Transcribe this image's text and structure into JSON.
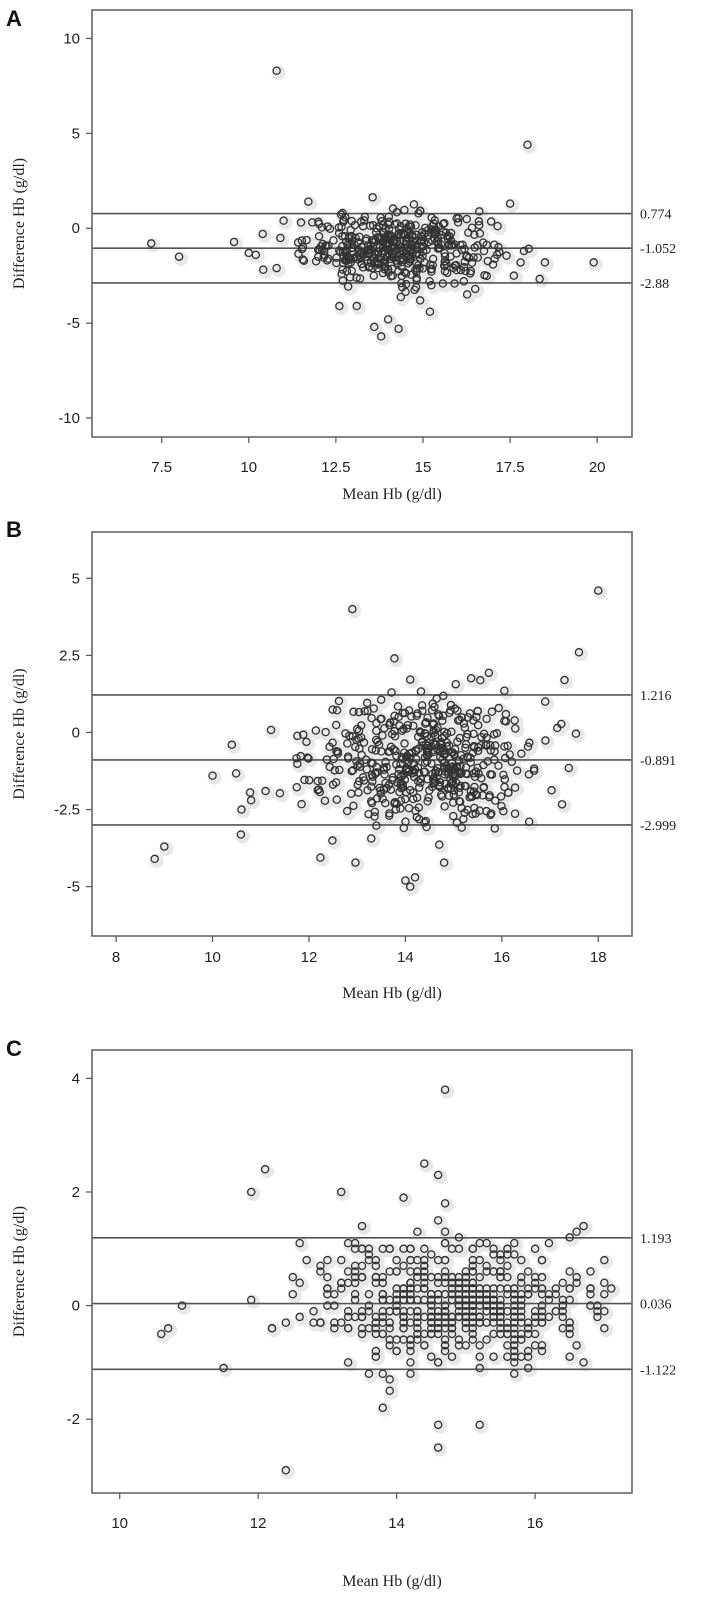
{
  "chart_data": [
    {
      "panel": "A",
      "type": "scatter",
      "title": "",
      "xlabel": "Mean Hb (g/dl)",
      "ylabel": "Difference Hb (g/dl)",
      "xlim": [
        5.5,
        21
      ],
      "ylim": [
        -11,
        11.5
      ],
      "xticks": [
        7.5,
        10,
        12.5,
        15,
        17.5,
        20
      ],
      "xtick_labels": [
        "7.5",
        "10",
        "12.5",
        "15",
        "17.5",
        "20"
      ],
      "yticks": [
        10,
        5,
        0,
        -5,
        -10
      ],
      "ytick_labels": [
        "10",
        "5",
        "0",
        "-5",
        "-10"
      ],
      "reference_lines": [
        {
          "value": 0.774,
          "label": "0.774"
        },
        {
          "value": -1.052,
          "label": "-1.052"
        },
        {
          "value": -2.88,
          "label": "-2.88"
        }
      ],
      "cloud": {
        "cx": 14.3,
        "cy": -1.05,
        "sx": 1.35,
        "sy": 0.9,
        "n": 430
      },
      "outliers": [
        [
          7.2,
          -0.8
        ],
        [
          8.0,
          -1.5
        ],
        [
          10.0,
          -1.3
        ],
        [
          10.2,
          -1.4
        ],
        [
          10.4,
          -0.3
        ],
        [
          10.8,
          8.3
        ],
        [
          10.8,
          -2.1
        ],
        [
          11.0,
          0.4
        ],
        [
          11.5,
          0.3
        ],
        [
          12.6,
          -4.1
        ],
        [
          13.1,
          -4.1
        ],
        [
          13.6,
          -5.2
        ],
        [
          13.8,
          -5.7
        ],
        [
          14.0,
          -4.8
        ],
        [
          14.3,
          -5.3
        ],
        [
          15.2,
          -4.4
        ],
        [
          16.5,
          -3.2
        ],
        [
          17.5,
          1.3
        ],
        [
          18.0,
          4.4
        ],
        [
          17.9,
          -1.2
        ],
        [
          18.5,
          -1.8
        ],
        [
          19.9,
          -1.8
        ]
      ]
    },
    {
      "panel": "B",
      "type": "scatter",
      "title": "",
      "xlabel": "Mean Hb (g/dl)",
      "ylabel": "Difference Hb (g/dl)",
      "xlim": [
        7.5,
        18.7
      ],
      "ylim": [
        -6.6,
        6.5
      ],
      "xticks": [
        8,
        10,
        12,
        14,
        16,
        18
      ],
      "xtick_labels": [
        "8",
        "10",
        "12",
        "14",
        "16",
        "18"
      ],
      "yticks": [
        5,
        2.5,
        0,
        -2.5,
        -5
      ],
      "ytick_labels": [
        "5",
        "2.5",
        "0",
        "-2.5",
        "-5"
      ],
      "reference_lines": [
        {
          "value": 1.216,
          "label": "1.216"
        },
        {
          "value": -0.891,
          "label": "-0.891"
        },
        {
          "value": -2.999,
          "label": "-2.999"
        }
      ],
      "cloud": {
        "cx": 14.3,
        "cy": -0.9,
        "sx": 1.15,
        "sy": 1.05,
        "n": 520
      },
      "outliers": [
        [
          8.8,
          -4.1
        ],
        [
          9.0,
          -3.7
        ],
        [
          10.0,
          -1.4
        ],
        [
          10.4,
          -0.4
        ],
        [
          10.6,
          -2.5
        ],
        [
          10.8,
          -2.2
        ],
        [
          11.1,
          -1.9
        ],
        [
          12.9,
          4.0
        ],
        [
          14.0,
          -4.8
        ],
        [
          14.1,
          -5.0
        ],
        [
          14.2,
          -4.7
        ],
        [
          17.6,
          2.6
        ],
        [
          18.0,
          4.6
        ],
        [
          16.9,
          1.0
        ],
        [
          17.3,
          1.7
        ]
      ]
    },
    {
      "panel": "C",
      "type": "scatter",
      "title": "",
      "xlabel": "Mean Hb (g/dl)",
      "ylabel": "Difference Hb (g/dl)",
      "xlim": [
        9.6,
        17.4
      ],
      "ylim": [
        -3.3,
        4.5
      ],
      "xticks": [
        10,
        12,
        14,
        16
      ],
      "xtick_labels": [
        "10",
        "12",
        "14",
        "16"
      ],
      "yticks": [
        4,
        2,
        0,
        -2
      ],
      "ytick_labels": [
        "4",
        "2",
        "0",
        "-2"
      ],
      "reference_lines": [
        {
          "value": 1.193,
          "label": "1.193"
        },
        {
          "value": 0.036,
          "label": "0.036"
        },
        {
          "value": -1.122,
          "label": "-1.122"
        }
      ],
      "cloud": {
        "cx": 14.8,
        "cy": 0.03,
        "sx": 1.0,
        "sy": 0.55,
        "n": 560
      },
      "outliers": [
        [
          10.6,
          -0.5
        ],
        [
          10.7,
          -0.4
        ],
        [
          10.9,
          0.0
        ],
        [
          11.5,
          -1.1
        ],
        [
          11.9,
          2.0
        ],
        [
          12.1,
          2.4
        ],
        [
          12.4,
          -2.9
        ],
        [
          13.2,
          2.0
        ],
        [
          14.1,
          1.9
        ],
        [
          14.4,
          2.5
        ],
        [
          14.6,
          2.3
        ],
        [
          14.7,
          3.8
        ],
        [
          14.6,
          -2.1
        ],
        [
          14.6,
          -2.5
        ],
        [
          15.2,
          -2.1
        ],
        [
          16.5,
          1.2
        ]
      ]
    }
  ]
}
